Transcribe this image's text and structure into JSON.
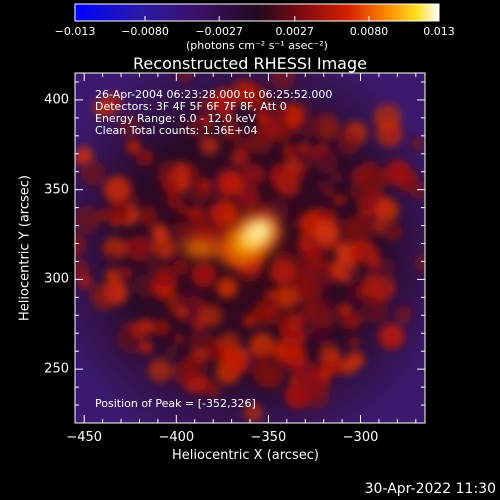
{
  "colorbar": {
    "ticks": [
      "−0.013",
      "−0.0080",
      "−0.0027",
      "0.0027",
      "0.0080",
      "0.013"
    ],
    "units": "(photons cm⁻² s⁻¹ asec⁻²)",
    "range": [
      -0.013,
      0.013
    ]
  },
  "title": "Reconstructed RHESSI Image",
  "annotations": {
    "time_range": "26-Apr-2004 06:23:28.000 to 06:25:52.000",
    "detectors": "Detectors: 3F 4F 5F 6F 7F 8F, Att 0",
    "energy": "Energy Range: 6.0 - 12.0 keV",
    "clean": "Clean     Total counts: 1.36E+04",
    "peak": "Position of Peak = [-352,326]"
  },
  "axes": {
    "xlabel": "Heliocentric X (arcsec)",
    "ylabel": "Heliocentric Y (arcsec)",
    "xticks": [
      "−450",
      "−400",
      "−350",
      "−300"
    ],
    "yticks": [
      "400",
      "350",
      "300",
      "250"
    ],
    "xlim": [
      -455,
      -265
    ],
    "ylim": [
      220,
      415
    ]
  },
  "peak": [
    -352,
    326
  ],
  "footer_timestamp": "30-Apr-2022 11:30",
  "colors": {
    "background": "#000000",
    "foreground": "#ffffff"
  }
}
